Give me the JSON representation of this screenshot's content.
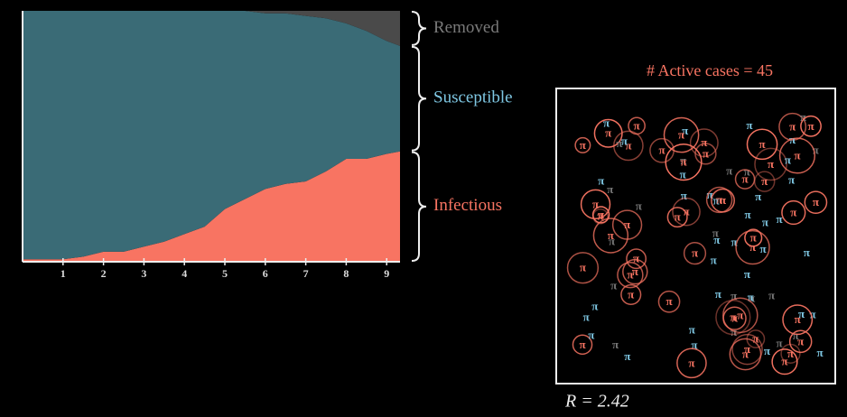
{
  "chart_data": {
    "type": "stacked-area",
    "x": [
      0,
      0.5,
      1,
      1.5,
      2,
      2.5,
      3,
      3.5,
      4,
      4.5,
      5,
      5.5,
      6,
      6.5,
      7,
      7.5,
      8,
      8.5,
      9,
      9.33
    ],
    "xlim": [
      0,
      9.33
    ],
    "xticks": [
      1,
      2,
      3,
      4,
      5,
      6,
      7,
      8,
      9
    ],
    "ylim": [
      0,
      100
    ],
    "series": [
      {
        "name": "Infectious",
        "color": "#f87462",
        "label_color": "#f87462",
        "values": [
          1,
          1,
          1,
          2,
          4,
          4,
          6,
          8,
          11,
          14,
          21,
          25,
          29,
          31,
          32,
          36,
          41,
          41,
          43,
          44
        ]
      },
      {
        "name": "Susceptible",
        "color": "#3a6b76",
        "label_color": "#7fc8e4",
        "values": [
          99,
          99,
          99,
          98,
          96,
          96,
          94,
          92,
          89,
          86,
          79,
          75,
          70,
          68,
          66,
          61,
          54,
          51,
          45,
          42
        ]
      },
      {
        "name": "Removed",
        "color": "#4a4a4a",
        "label_color": "#7a7a7a",
        "values": [
          0,
          0,
          0,
          0,
          0,
          0,
          0,
          0,
          0,
          0,
          0,
          0,
          1,
          1,
          2,
          3,
          5,
          8,
          12,
          14
        ]
      }
    ]
  },
  "simulation": {
    "title": "# Active cases = 45",
    "r_label": "R = 2.42",
    "agent_symbol": "π"
  }
}
